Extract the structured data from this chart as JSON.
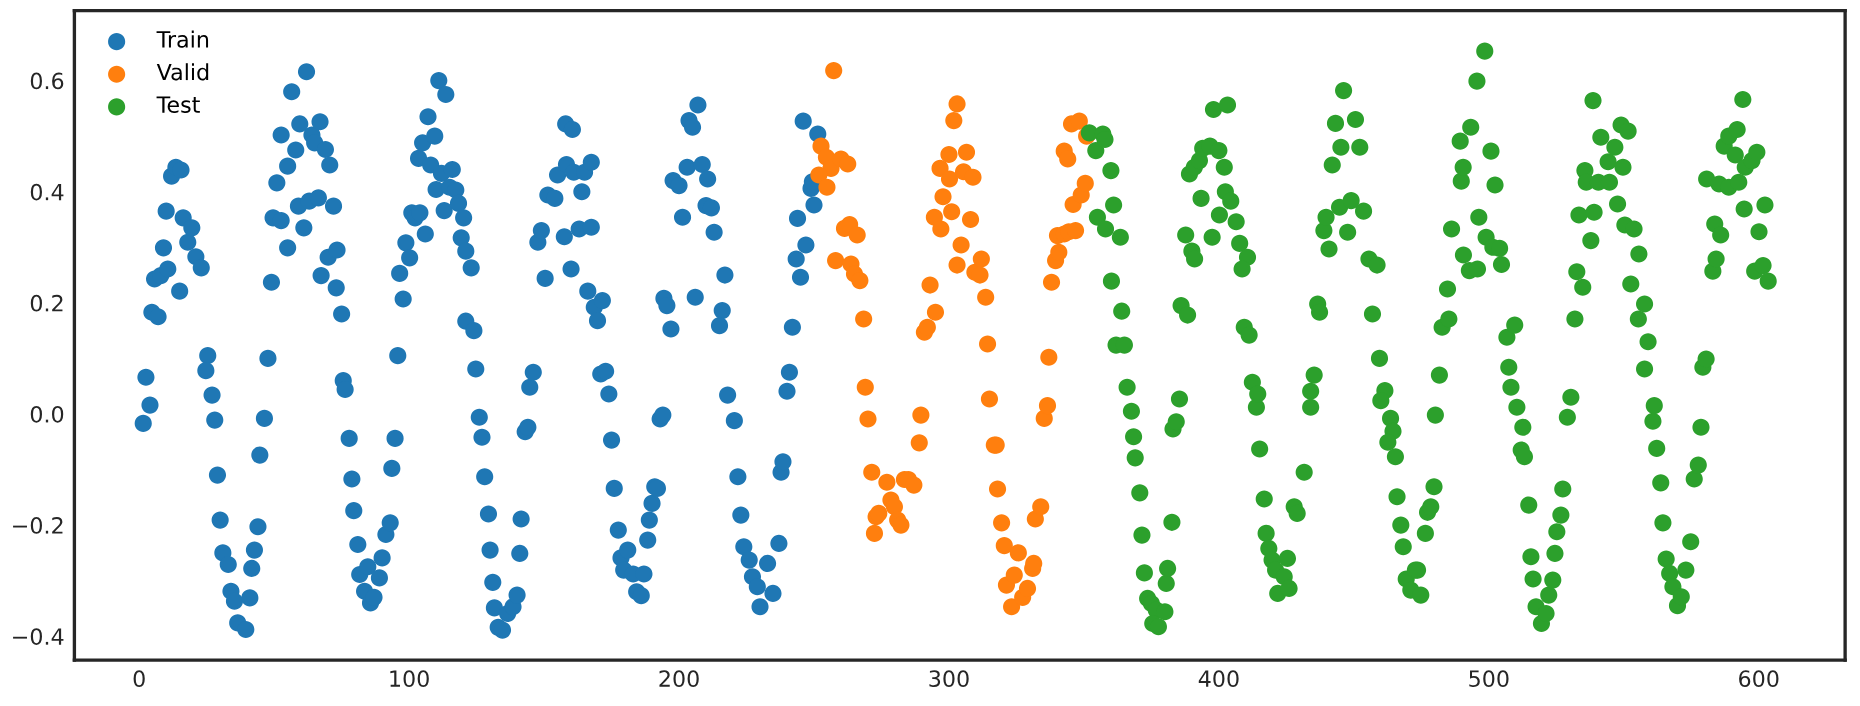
{
  "chart_data": {
    "type": "scatter",
    "xlim": [
      -24,
      632
    ],
    "ylim": [
      -0.443,
      0.726
    ],
    "xticks": [
      0,
      100,
      200,
      300,
      400,
      500,
      600
    ],
    "yticks": [
      {
        "value": -0.4,
        "label": "−0.4"
      },
      {
        "value": -0.2,
        "label": "−0.2"
      },
      {
        "value": 0.0,
        "label": "0.0"
      },
      {
        "value": 0.2,
        "label": "0.2"
      },
      {
        "value": 0.4,
        "label": "0.4"
      },
      {
        "value": 0.6,
        "label": "0.6"
      }
    ],
    "legend": "top left",
    "grid": false,
    "marker": "circle",
    "series": [
      {
        "name": "Train",
        "color": "#1f77b4",
        "x": [
          1.5,
          2.5,
          4,
          4.7,
          7,
          5.7,
          8,
          10.6,
          9,
          10,
          12,
          13.6,
          15.5,
          15,
          16.3,
          18,
          19.5,
          21,
          23,
          25.4,
          24.7,
          27,
          28,
          29,
          30,
          31,
          33,
          34,
          35.3,
          36.5,
          39.5,
          41,
          41.7,
          42.7,
          44,
          44.7,
          46.4,
          47.7,
          49,
          51,
          52.6,
          49.6,
          52.6,
          55,
          55,
          56.5,
          58,
          59.5,
          59,
          61,
          62,
          63,
          64,
          65,
          66.4,
          67,
          67.4,
          69,
          70,
          70.6,
          72,
          73.3,
          73,
          75,
          75.6,
          76.3,
          77.8,
          78.8,
          79.5,
          81,
          81.7,
          83.5,
          84.7,
          85.7,
          87,
          89,
          90,
          91.4,
          93,
          93.6,
          94.8,
          95.8,
          97.8,
          96.5,
          98.8,
          100.2,
          101,
          102.2,
          104,
          103.5,
          105,
          106,
          107,
          108,
          109.5,
          110,
          111,
          112,
          113,
          113.6,
          115,
          116,
          117.3,
          118.3,
          119.3,
          120.2,
          121,
          123,
          121,
          124,
          124.7,
          126,
          127,
          128,
          129.4,
          130,
          131,
          131.6,
          133,
          134.6,
          136.5,
          138.5,
          140,
          141,
          141.5,
          143,
          144,
          144.7,
          146,
          147.7,
          149,
          150.4,
          151.4,
          154,
          155,
          157.5,
          158,
          160.5,
          158.3,
          161,
          160,
          163,
          164,
          165,
          167.5,
          167.5,
          166.2,
          168.6,
          171.6,
          169.8,
          171,
          172.8,
          174,
          175,
          176,
          177.5,
          178.5,
          179.5,
          181,
          183,
          184.3,
          186,
          187,
          188.4,
          189,
          190,
          191,
          192,
          193,
          194,
          194.4,
          195.5,
          197,
          197.8,
          200,
          201.3,
          203,
          203.7,
          205,
          207,
          206,
          208.6,
          210.6,
          210,
          212,
          213,
          216,
          215,
          217,
          218,
          220.5,
          221.8,
          222.9,
          224,
          226,
          227.2,
          229,
          230,
          232.8,
          234.8,
          237,
          237.8,
          238.5,
          240,
          240.9,
          242,
          245,
          243.4,
          243.9,
          247,
          250,
          248.9,
          249.4,
          246,
          251.4
        ],
        "values": [
          -0.017,
          0.066,
          0.016,
          0.183,
          0.175,
          0.243,
          0.249,
          0.261,
          0.299,
          0.365,
          0.428,
          0.444,
          0.439,
          0.221,
          0.353,
          0.309,
          0.335,
          0.283,
          0.263,
          0.105,
          0.078,
          0.034,
          -0.011,
          -0.11,
          -0.191,
          -0.25,
          -0.271,
          -0.319,
          -0.337,
          -0.376,
          -0.388,
          -0.331,
          -0.278,
          -0.245,
          -0.203,
          -0.074,
          -0.008,
          0.1,
          0.237,
          0.416,
          0.502,
          0.353,
          0.348,
          0.299,
          0.446,
          0.58,
          0.475,
          0.522,
          0.374,
          0.335,
          0.616,
          0.383,
          0.502,
          0.488,
          0.389,
          0.526,
          0.249,
          0.476,
          0.282,
          0.448,
          0.374,
          0.295,
          0.227,
          0.18,
          0.06,
          0.044,
          -0.044,
          -0.117,
          -0.174,
          -0.235,
          -0.289,
          -0.319,
          -0.275,
          -0.34,
          -0.33,
          -0.295,
          -0.259,
          -0.217,
          -0.196,
          -0.098,
          -0.044,
          0.105,
          0.207,
          0.253,
          0.308,
          0.281,
          0.362,
          0.353,
          0.362,
          0.46,
          0.488,
          0.324,
          0.535,
          0.448,
          0.5,
          0.404,
          0.6,
          0.433,
          0.366,
          0.575,
          0.408,
          0.44,
          0.403,
          0.379,
          0.317,
          0.353,
          0.293,
          0.263,
          0.167,
          0.15,
          0.081,
          -0.006,
          -0.042,
          -0.113,
          -0.18,
          -0.245,
          -0.303,
          -0.349,
          -0.384,
          -0.389,
          -0.359,
          -0.347,
          -0.326,
          -0.251,
          -0.189,
          -0.032,
          -0.024,
          0.048,
          0.075,
          0.309,
          0.33,
          0.244,
          0.394,
          0.388,
          0.43,
          0.319,
          0.522,
          0.512,
          0.449,
          0.435,
          0.261,
          0.333,
          0.4,
          0.435,
          0.453,
          0.336,
          0.221,
          0.192,
          0.204,
          0.168,
          0.072,
          0.077,
          0.036,
          -0.047,
          -0.134,
          -0.209,
          -0.259,
          -0.281,
          -0.245,
          -0.288,
          -0.32,
          -0.327,
          -0.288,
          -0.227,
          -0.191,
          -0.161,
          -0.131,
          -0.134,
          -0.009,
          -0.002,
          0.208,
          0.195,
          0.153,
          0.42,
          0.411,
          0.354,
          0.444,
          0.528,
          0.516,
          0.556,
          0.21,
          0.449,
          0.423,
          0.375,
          0.371,
          0.327,
          0.186,
          0.159,
          0.25,
          0.034,
          -0.012,
          -0.113,
          -0.182,
          -0.239,
          -0.263,
          -0.293,
          -0.311,
          -0.347,
          -0.269,
          -0.323,
          -0.233,
          -0.105,
          -0.086,
          0.041,
          0.075,
          0.156,
          0.246,
          0.279,
          0.352,
          0.304,
          0.376,
          0.406,
          0.418,
          0.527,
          0.504
        ]
      },
      {
        "name": "Valid",
        "color": "#ff7f0e",
        "x": [
          252.6,
          254.6,
          256.3,
          251.8,
          254.8,
          260,
          262.5,
          257.3,
          261.3,
          263.2,
          266,
          258,
          263.7,
          265,
          267,
          268.4,
          269,
          270,
          271.4,
          272.4,
          273,
          274,
          277,
          278.5,
          279.8,
          281,
          282.2,
          283.5,
          285,
          287,
          289,
          289.6,
          290.9,
          292,
          295,
          293,
          294.6,
          297,
          297.8,
          296.7,
          300,
          300.2,
          301,
          301.8,
          303,
          303,
          304.5,
          305.4,
          306.5,
          308.9,
          308,
          309.6,
          311.5,
          312,
          313.6,
          314.3,
          315,
          316.8,
          317.5,
          318,
          319.5,
          320.5,
          321.3,
          323.2,
          324.2,
          325.7,
          327.3,
          329.1,
          331,
          331.4,
          332,
          334,
          335.3,
          336.5,
          337,
          338,
          339.5,
          340.7,
          340.2,
          342.7,
          344.4,
          346.9,
          346,
          349,
          350.5,
          342.7,
          344,
          345.4,
          348.3,
          351
        ],
        "values": [
          0.482,
          0.462,
          0.442,
          0.43,
          0.408,
          0.459,
          0.45,
          0.618,
          0.334,
          0.341,
          0.322,
          0.276,
          0.27,
          0.252,
          0.24,
          0.171,
          0.048,
          -0.009,
          -0.105,
          -0.215,
          -0.185,
          -0.179,
          -0.123,
          -0.155,
          -0.167,
          -0.191,
          -0.2,
          -0.118,
          -0.118,
          -0.128,
          -0.052,
          -0.002,
          0.147,
          0.156,
          0.183,
          0.232,
          0.354,
          0.333,
          0.391,
          0.442,
          0.467,
          0.423,
          0.364,
          0.528,
          0.558,
          0.268,
          0.304,
          0.436,
          0.471,
          0.426,
          0.35,
          0.255,
          0.25,
          0.279,
          0.21,
          0.126,
          0.027,
          -0.056,
          -0.056,
          -0.135,
          -0.196,
          -0.237,
          -0.308,
          -0.347,
          -0.29,
          -0.25,
          -0.33,
          -0.314,
          -0.278,
          -0.269,
          -0.189,
          -0.167,
          -0.008,
          0.015,
          0.102,
          0.237,
          0.276,
          0.291,
          0.321,
          0.324,
          0.328,
          0.33,
          0.377,
          0.394,
          0.415,
          0.473,
          0.459,
          0.522,
          0.527,
          0.5
        ]
      },
      {
        "name": "Test",
        "color": "#2ca02c",
        "x": [
          352,
          354.4,
          357,
          357.8,
          360,
          355,
          358,
          361,
          363.5,
          360.2,
          364,
          361.9,
          365,
          366,
          367.6,
          368.4,
          369,
          370.7,
          371.5,
          372.4,
          373.6,
          375,
          376.8,
          375.5,
          377.6,
          380,
          380.5,
          381,
          382.6,
          383,
          384.2,
          385.4,
          386,
          388.4,
          387.7,
          390,
          391,
          389.1,
          390.9,
          392.8,
          394,
          393.4,
          396.7,
          400,
          398,
          403.2,
          402,
          397.5,
          400.2,
          402.4,
          404.4,
          406.4,
          407.7,
          410.6,
          408.6,
          409.4,
          411.2,
          412.4,
          413.9,
          414.4,
          415.1,
          416.8,
          417.5,
          418.5,
          419.7,
          421,
          421.8,
          424.2,
          425.4,
          426,
          427.9,
          429,
          431.6,
          434,
          434,
          435.3,
          436.6,
          437.3,
          438.9,
          439.7,
          440.8,
          442,
          443.2,
          445.2,
          444.7,
          446.2,
          447.7,
          449,
          450.6,
          452.2,
          453.6,
          455.6,
          458.6,
          456.9,
          459.5,
          461.5,
          460,
          463.6,
          464.5,
          462.6,
          465.4,
          466,
          467.4,
          468.3,
          469.4,
          471.1,
          472.8,
          473.6,
          474.8,
          476.5,
          477.3,
          478.5,
          479.7,
          480.2,
          481.7,
          482.7,
          485.2,
          484.7,
          486.2,
          490.6,
          492.8,
          495.8,
          489.8,
          490.5,
          489.4,
          493.3,
          495.6,
          498.5,
          500.8,
          502.3,
          496.3,
          499,
          501.5,
          504,
          504.7,
          506.7,
          509.6,
          507.4,
          508.2,
          510.4,
          512.6,
          512,
          513.2,
          514.8,
          515.6,
          516.4,
          517.5,
          519.5,
          521.2,
          522.2,
          523.7,
          524.5,
          525.2,
          526.7,
          527.4,
          529.1,
          530.4,
          531.9,
          532.6,
          534.8,
          533.4,
          537.8,
          539,
          535.6,
          536.1,
          538.6,
          540.6,
          541.5,
          544.2,
          544.7,
          546.7,
          547.7,
          549,
          549.7,
          551.6,
          550.4,
          553.8,
          555.6,
          552.6,
          555.4,
          557.7,
          559,
          557.7,
          561.3,
          560.8,
          562.2,
          563.7,
          564.5,
          565.7,
          567,
          568.2,
          569.9,
          571.3,
          573,
          574.8,
          576.1,
          577.6,
          578.6,
          579.3,
          580.5,
          583,
          584.2,
          583.7,
          585.9,
          580.7,
          585.3,
          588.9,
          592.6,
          587.2,
          588.9,
          592,
          591.3,
          595,
          597.5,
          599.3,
          594.1,
          594.6,
          600.1,
          602.3,
          598.5,
          601.6,
          603.5
        ],
        "values": [
          0.506,
          0.474,
          0.504,
          0.494,
          0.438,
          0.354,
          0.333,
          0.376,
          0.318,
          0.239,
          0.185,
          0.124,
          0.124,
          0.048,
          0.005,
          -0.041,
          -0.079,
          -0.142,
          -0.218,
          -0.286,
          -0.332,
          -0.341,
          -0.353,
          -0.377,
          -0.383,
          -0.356,
          -0.305,
          -0.278,
          -0.195,
          -0.027,
          -0.014,
          0.027,
          0.195,
          0.178,
          0.322,
          0.293,
          0.279,
          0.432,
          0.444,
          0.456,
          0.478,
          0.388,
          0.482,
          0.474,
          0.548,
          0.556,
          0.444,
          0.318,
          0.358,
          0.4,
          0.383,
          0.346,
          0.307,
          0.282,
          0.261,
          0.156,
          0.142,
          0.057,
          0.012,
          0.036,
          -0.063,
          -0.153,
          -0.215,
          -0.242,
          -0.263,
          -0.281,
          -0.323,
          -0.293,
          -0.26,
          -0.314,
          -0.167,
          -0.179,
          -0.105,
          0.012,
          0.041,
          0.07,
          0.198,
          0.183,
          0.33,
          0.354,
          0.297,
          0.448,
          0.523,
          0.48,
          0.372,
          0.582,
          0.327,
          0.384,
          0.53,
          0.48,
          0.365,
          0.279,
          0.268,
          0.18,
          0.1,
          0.042,
          0.024,
          -0.008,
          -0.031,
          -0.051,
          -0.077,
          -0.149,
          -0.2,
          -0.239,
          -0.297,
          -0.317,
          -0.281,
          -0.281,
          -0.326,
          -0.215,
          -0.177,
          -0.167,
          -0.131,
          -0.002,
          0.07,
          0.156,
          0.171,
          0.225,
          0.333,
          0.286,
          0.258,
          0.261,
          0.419,
          0.444,
          0.491,
          0.516,
          0.599,
          0.653,
          0.473,
          0.412,
          0.354,
          0.318,
          0.3,
          0.298,
          0.269,
          0.138,
          0.16,
          0.084,
          0.048,
          0.012,
          -0.024,
          -0.065,
          -0.077,
          -0.164,
          -0.257,
          -0.297,
          -0.347,
          -0.377,
          -0.359,
          -0.326,
          -0.299,
          -0.251,
          -0.212,
          -0.182,
          -0.135,
          -0.006,
          0.03,
          0.171,
          0.256,
          0.228,
          0.358,
          0.312,
          0.363,
          0.438,
          0.417,
          0.564,
          0.417,
          0.498,
          0.454,
          0.417,
          0.48,
          0.378,
          0.52,
          0.444,
          0.509,
          0.34,
          0.333,
          0.288,
          0.234,
          0.171,
          0.198,
          0.13,
          0.081,
          0.015,
          -0.013,
          -0.062,
          -0.124,
          -0.196,
          -0.261,
          -0.287,
          -0.311,
          -0.345,
          -0.329,
          -0.281,
          -0.23,
          -0.117,
          -0.092,
          -0.024,
          0.084,
          0.099,
          0.257,
          0.279,
          0.342,
          0.322,
          0.423,
          0.414,
          0.408,
          0.417,
          0.482,
          0.5,
          0.512,
          0.466,
          0.444,
          0.456,
          0.471,
          0.566,
          0.369,
          0.328,
          0.376,
          0.257,
          0.267,
          0.239
        ]
      }
    ]
  }
}
